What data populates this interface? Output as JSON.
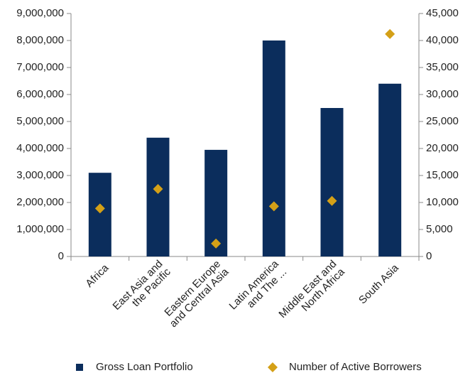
{
  "chart_data": {
    "type": "bar",
    "categories": [
      [
        "Africa"
      ],
      [
        "East Asia and",
        "the Pacific"
      ],
      [
        "Eastern Europe",
        "and Central Asia"
      ],
      [
        "Latin America",
        "and The ..."
      ],
      [
        "Middle East and",
        "North Africa"
      ],
      [
        "South Asia"
      ]
    ],
    "series": [
      {
        "name": "Gross Loan Portfolio",
        "color": "#0b2d5c",
        "type": "bar",
        "values": [
          3100000,
          4400000,
          3950000,
          8000000,
          5500000,
          6400000
        ]
      },
      {
        "name": "Number of Active Borrowers",
        "color": "#d4a017",
        "type": "scatter",
        "axis": "y2",
        "values": [
          8900,
          12500,
          2400,
          9300,
          10300,
          41200
        ]
      }
    ],
    "ylim": [
      0,
      9000000
    ],
    "yticks": [
      0,
      {
        "value": 1000000,
        "label": "1,000,000"
      },
      {
        "value": 2000000,
        "label": "2,000,000"
      },
      {
        "value": 3000000,
        "label": "3,000,000"
      },
      {
        "value": 4000000,
        "label": "4,000,000"
      },
      {
        "value": 5000000,
        "label": "5,000,000"
      },
      {
        "value": 6000000,
        "label": "6,000,000"
      },
      {
        "value": 7000000,
        "label": "7,000,000"
      },
      {
        "value": 8000000,
        "label": "8,000,000"
      },
      {
        "value": 9000000,
        "label": "9,000,000"
      }
    ],
    "y2lim": [
      0,
      45000
    ],
    "y2ticks": [
      0,
      {
        "value": 5000,
        "label": "5,000"
      },
      {
        "value": 10000,
        "label": "10,000"
      },
      {
        "value": 15000,
        "label": "15,000"
      },
      {
        "value": 20000,
        "label": "20,000"
      },
      {
        "value": 25000,
        "label": "25,000"
      },
      {
        "value": 30000,
        "label": "30,000"
      },
      {
        "value": 35000,
        "label": "35,000"
      },
      {
        "value": 40000,
        "label": "40,000"
      },
      {
        "value": 45000,
        "label": "45,000"
      }
    ],
    "legend": "bottom"
  }
}
